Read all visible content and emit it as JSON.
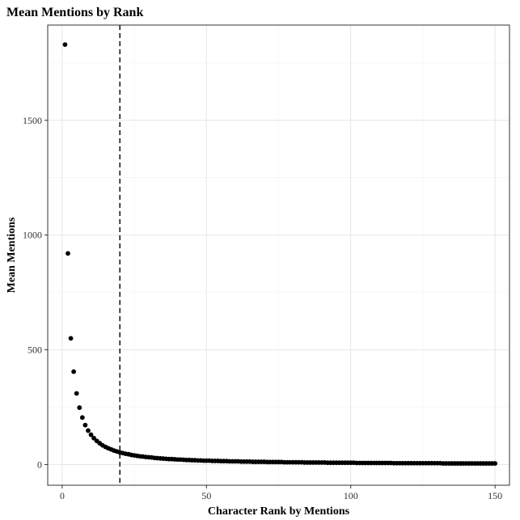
{
  "colors": {
    "background": "#ffffff",
    "panel_border": "#333333",
    "grid_major": "#e6e6e6",
    "grid_minor": "#f2f2f2",
    "points": "#000000",
    "reference_line": "#000000"
  },
  "chart_data": {
    "type": "scatter",
    "title": "Mean Mentions by Rank",
    "xlabel": "Character Rank by Mentions",
    "ylabel": "Mean Mentions",
    "xlim": [
      -5,
      155
    ],
    "ylim": [
      -90,
      1915
    ],
    "xticks": [
      0,
      50,
      100,
      150
    ],
    "xtick_labels": [
      "0",
      "50",
      "100",
      "150"
    ],
    "yticks": [
      0,
      500,
      1000,
      1500
    ],
    "ytick_labels": [
      "0",
      "500",
      "1000",
      "1500"
    ],
    "grid": true,
    "reference_line": {
      "orientation": "vertical",
      "x": 20,
      "style": "dashed"
    },
    "series": [
      {
        "name": "Mean Mentions",
        "point_formula": "y = 1830 / rank^0.99",
        "x": [
          1,
          2,
          3,
          4,
          5,
          6,
          7,
          8,
          9,
          10,
          11,
          12,
          13,
          14,
          15,
          16,
          17,
          18,
          19,
          20,
          21,
          22,
          23,
          24,
          25,
          26,
          27,
          28,
          29,
          30,
          31,
          32,
          33,
          34,
          35,
          36,
          37,
          38,
          39,
          40,
          41,
          42,
          43,
          44,
          45,
          46,
          47,
          48,
          49,
          50,
          51,
          52,
          53,
          54,
          55,
          56,
          57,
          58,
          59,
          60,
          61,
          62,
          63,
          64,
          65,
          66,
          67,
          68,
          69,
          70,
          71,
          72,
          73,
          74,
          75,
          76,
          77,
          78,
          79,
          80,
          81,
          82,
          83,
          84,
          85,
          86,
          87,
          88,
          89,
          90,
          91,
          92,
          93,
          94,
          95,
          96,
          97,
          98,
          99,
          100,
          101,
          102,
          103,
          104,
          105,
          106,
          107,
          108,
          109,
          110,
          111,
          112,
          113,
          114,
          115,
          116,
          117,
          118,
          119,
          120,
          121,
          122,
          123,
          124,
          125,
          126,
          127,
          128,
          129,
          130,
          131,
          132,
          133,
          134,
          135,
          136,
          137,
          138,
          139,
          140,
          141,
          142,
          143,
          144,
          145,
          146,
          147,
          148,
          149,
          150
        ],
        "y": [
          1830,
          920,
          550,
          405,
          310,
          248,
          205,
          172,
          148,
          130,
          115,
          103,
          93,
          84,
          77,
          71,
          66,
          61,
          57,
          53,
          50,
          47,
          45,
          42,
          40,
          38,
          36,
          35,
          33,
          32,
          31,
          29,
          28,
          27,
          26,
          25,
          24,
          24,
          23,
          22,
          22,
          21,
          20,
          20,
          19,
          19,
          18,
          18,
          17,
          17,
          17,
          16,
          16,
          16,
          15,
          15,
          15,
          14,
          14,
          14,
          14,
          13,
          13,
          13,
          13,
          12,
          12,
          12,
          12,
          12,
          11,
          11,
          11,
          11,
          11,
          11,
          10,
          10,
          10,
          10,
          10,
          10,
          10,
          9,
          9,
          9,
          9,
          9,
          9,
          9,
          9,
          8,
          8,
          8,
          8,
          8,
          8,
          8,
          8,
          8,
          8,
          7,
          7,
          7,
          7,
          7,
          7,
          7,
          7,
          7,
          7,
          7,
          7,
          7,
          6,
          6,
          6,
          6,
          6,
          6,
          6,
          6,
          6,
          6,
          6,
          6,
          6,
          6,
          6,
          6,
          6,
          5,
          5,
          5,
          5,
          5,
          5,
          5,
          5,
          5,
          5,
          5,
          5,
          5,
          5,
          5,
          5,
          5,
          5,
          5
        ]
      }
    ]
  }
}
